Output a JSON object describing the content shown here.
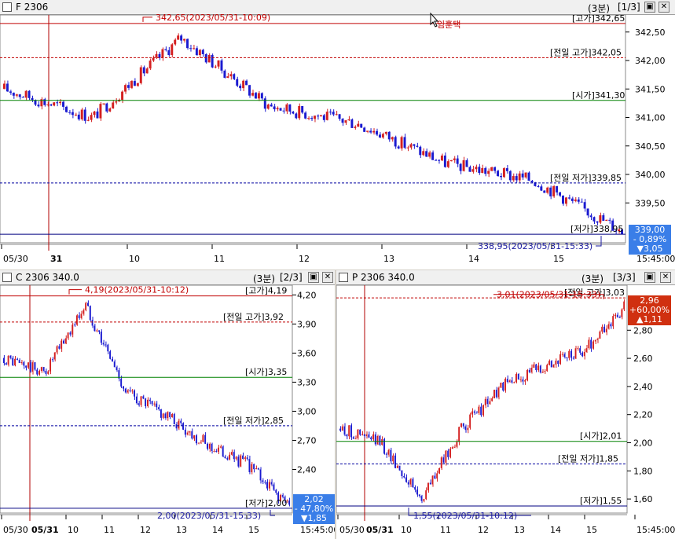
{
  "colors": {
    "up": "#d42020",
    "down": "#1a1ad0",
    "high_line": "#c00000",
    "open_line": "#008000",
    "ref_line": "#c00000",
    "low_ref": "#0000a0",
    "cursor": "#b00000"
  },
  "panels": [
    {
      "id": "futures",
      "title": "F 2306",
      "interval": "(3분)",
      "page": "[1/3]",
      "watermark": "임훈택",
      "yticks": [
        "342,50",
        "342,00",
        "341,50",
        "341,00",
        "340,50",
        "340,00",
        "339,50"
      ],
      "xticks": [
        "05/30",
        "31",
        "10",
        "11",
        "12",
        "13",
        "14",
        "15",
        "15:45:00"
      ],
      "ref_lines": [
        {
          "label": "[고가]342,65",
          "type": "high"
        },
        {
          "label": "[전일 고가]342,05",
          "type": "prev_high"
        },
        {
          "label": "[시가]341,30",
          "type": "open"
        },
        {
          "label": "[전일 저가]339,85",
          "type": "prev_low"
        },
        {
          "label": "[저가]338,95",
          "type": "low"
        }
      ],
      "high_marker": "342,65(2023/05/31-10:09)",
      "low_marker": "338,95(2023/05/31-15:33)",
      "badge": {
        "price": "339,00",
        "pct": "- 0,89%",
        "chg": "▼3,05",
        "color": "#3a7ee8"
      }
    },
    {
      "id": "call",
      "title": "C 2306 340.0",
      "interval": "(3분)",
      "page": "[2/3]",
      "yticks": [
        "4,20",
        "3,90",
        "3,60",
        "3,30",
        "3,00",
        "2,70",
        "2,40"
      ],
      "xticks": [
        "05/30",
        "05/31",
        "10",
        "11",
        "12",
        "13",
        "14",
        "15",
        "15:45:00"
      ],
      "ref_lines": [
        {
          "label": "[고가]4,19",
          "type": "high"
        },
        {
          "label": "[전일 고가]3,92",
          "type": "prev_high"
        },
        {
          "label": "[시가]3,35",
          "type": "open"
        },
        {
          "label": "[전일 저가]2,85",
          "type": "prev_low"
        },
        {
          "label": "[저가]2,00",
          "type": "low"
        }
      ],
      "high_marker": "4,19(2023/05/31-10:12)",
      "low_marker": "2,00(2023/05/31-15:33)",
      "badge": {
        "price": "2,02",
        "pct": "- 47,80%",
        "chg": "▼1,85",
        "color": "#3a7ee8"
      }
    },
    {
      "id": "put",
      "title": "P 2306 340.0",
      "interval": "(3분)",
      "page": "[3/3]",
      "yticks": [
        "2,80",
        "2,60",
        "2,40",
        "2,20",
        "2,00",
        "1,80",
        "1,60"
      ],
      "xticks": [
        "05/30",
        "05/31",
        "10",
        "11",
        "12",
        "13",
        "14",
        "15",
        "15:45:00"
      ],
      "ref_lines": [
        {
          "label": "[전일 고가]3,03",
          "type": "prev_high"
        },
        {
          "label": "[시가]2,01",
          "type": "open"
        },
        {
          "label": "[전일 저가]1,85",
          "type": "prev_low"
        },
        {
          "label": "[저가]1,55",
          "type": "low"
        }
      ],
      "high_marker": "3,01(2023/05/31-15:33)",
      "low_marker": "1,55(2023/05/31-10:12)",
      "badge": {
        "price": "2,96",
        "pct": "+60,00%",
        "chg": "▲1,11",
        "color": "#d03010"
      }
    }
  ],
  "chart_data": [
    {
      "type": "candlestick",
      "title": "F 2306",
      "ylim": [
        338.8,
        342.8
      ],
      "series": [
        {
          "x": [
            "05/30",
            "31",
            "10",
            "11",
            "12",
            "13",
            "14",
            "15"
          ],
          "values": [
            341.5,
            341.0,
            342.4,
            341.2,
            340.9,
            340.2,
            339.9,
            339.0
          ]
        }
      ],
      "high": 342.65,
      "low": 338.95,
      "open": 341.3,
      "prev_high": 342.05,
      "prev_low": 339.85,
      "last": 339.0
    },
    {
      "type": "candlestick",
      "title": "C 2306 340.0",
      "ylim": [
        1.95,
        4.3
      ],
      "series": [
        {
          "x": [
            "05/30",
            "05/31",
            "10",
            "11",
            "12",
            "13",
            "14",
            "15"
          ],
          "values": [
            3.55,
            3.4,
            4.1,
            3.2,
            2.95,
            2.65,
            2.45,
            2.02
          ]
        }
      ],
      "high": 4.19,
      "low": 2.0,
      "open": 3.35,
      "prev_high": 3.92,
      "prev_low": 2.85,
      "last": 2.02
    },
    {
      "type": "candlestick",
      "title": "P 2306 340.0",
      "ylim": [
        1.5,
        3.05
      ],
      "series": [
        {
          "x": [
            "05/30",
            "05/31",
            "10",
            "11",
            "12",
            "13",
            "14",
            "15"
          ],
          "values": [
            2.1,
            2.0,
            1.6,
            2.1,
            2.4,
            2.55,
            2.65,
            2.96
          ]
        }
      ],
      "high": 3.01,
      "low": 1.55,
      "open": 2.01,
      "prev_high": 3.03,
      "prev_low": 1.85,
      "last": 2.96
    }
  ]
}
